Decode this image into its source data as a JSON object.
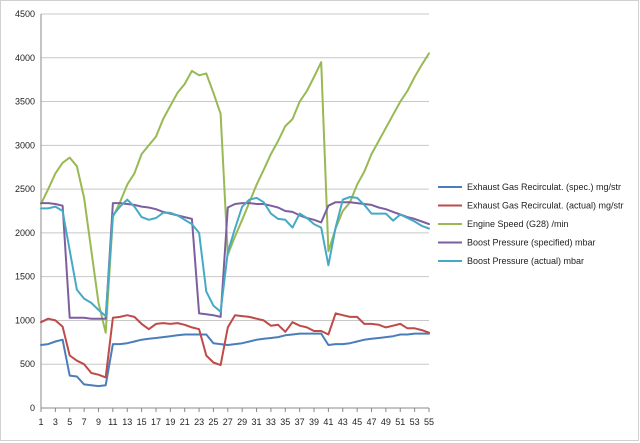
{
  "chart_data": {
    "type": "line",
    "title": "",
    "xlabel": "",
    "ylabel": "",
    "ylim": [
      0,
      4500
    ],
    "yticks": [
      0,
      500,
      1000,
      1500,
      2000,
      2500,
      3000,
      3500,
      4000,
      4500
    ],
    "x": [
      1,
      2,
      3,
      4,
      5,
      6,
      7,
      8,
      9,
      10,
      11,
      12,
      13,
      14,
      15,
      16,
      17,
      18,
      19,
      20,
      21,
      22,
      23,
      24,
      25,
      26,
      27,
      28,
      29,
      30,
      31,
      32,
      33,
      34,
      35,
      36,
      37,
      38,
      39,
      40,
      41,
      42,
      43,
      44,
      45,
      46,
      47,
      48,
      49,
      50,
      51,
      52,
      53,
      54,
      55
    ],
    "xtick_labels": [
      "1",
      "3",
      "5",
      "7",
      "9",
      "11",
      "13",
      "15",
      "17",
      "19",
      "21",
      "23",
      "25",
      "27",
      "29",
      "31",
      "33",
      "35",
      "37",
      "39",
      "41",
      "43",
      "45",
      "47",
      "49",
      "51",
      "53",
      "55"
    ],
    "grid": "horizontal",
    "legend": "right",
    "series": [
      {
        "name": "Exhaust Gas Recirculat. (spec.)  mg/str",
        "color": "#4A7EBB",
        "values": [
          720,
          730,
          760,
          780,
          370,
          360,
          270,
          260,
          250,
          260,
          730,
          730,
          740,
          760,
          780,
          790,
          800,
          810,
          820,
          830,
          840,
          840,
          840,
          840,
          740,
          730,
          720,
          730,
          740,
          760,
          780,
          790,
          800,
          810,
          830,
          840,
          850,
          850,
          850,
          850,
          720,
          730,
          730,
          740,
          760,
          780,
          790,
          800,
          810,
          820,
          840,
          840,
          850,
          850,
          850
        ]
      },
      {
        "name": "Exhaust Gas Recirculat. (actual)  mg/str",
        "color": "#BE4B48",
        "values": [
          980,
          1020,
          1000,
          930,
          600,
          540,
          500,
          400,
          380,
          350,
          1030,
          1040,
          1060,
          1040,
          960,
          900,
          960,
          970,
          960,
          970,
          950,
          920,
          900,
          600,
          520,
          490,
          920,
          1060,
          1050,
          1040,
          1020,
          1000,
          940,
          950,
          870,
          980,
          940,
          920,
          880,
          880,
          840,
          1080,
          1060,
          1040,
          1040,
          960,
          960,
          950,
          920,
          940,
          960,
          910,
          910,
          890,
          860
        ]
      },
      {
        "name": "Engine Speed (G28)  /min",
        "color": "#98B954",
        "values": [
          2330,
          2500,
          2680,
          2800,
          2860,
          2760,
          2400,
          1800,
          1200,
          860,
          2180,
          2350,
          2550,
          2680,
          2900,
          3000,
          3100,
          3300,
          3450,
          3600,
          3700,
          3850,
          3800,
          3820,
          3600,
          3360,
          1750,
          1960,
          2150,
          2350,
          2550,
          2720,
          2900,
          3050,
          3220,
          3300,
          3500,
          3620,
          3780,
          3950,
          1790,
          2050,
          2250,
          2350,
          2550,
          2700,
          2900,
          3050,
          3200,
          3350,
          3500,
          3620,
          3780,
          3920,
          4050
        ]
      },
      {
        "name": "Boost Pressure (specified)  mbar",
        "color": "#7D5FA0",
        "values": [
          2340,
          2340,
          2330,
          2310,
          1030,
          1030,
          1030,
          1020,
          1020,
          1020,
          2340,
          2340,
          2330,
          2320,
          2300,
          2290,
          2270,
          2240,
          2220,
          2200,
          2180,
          2160,
          1080,
          1070,
          1060,
          1040,
          2290,
          2330,
          2340,
          2340,
          2330,
          2330,
          2310,
          2290,
          2250,
          2240,
          2200,
          2170,
          2150,
          2120,
          2310,
          2350,
          2350,
          2350,
          2340,
          2330,
          2320,
          2290,
          2270,
          2240,
          2210,
          2180,
          2160,
          2130,
          2100
        ]
      },
      {
        "name": "Boost Pressure (actual)  mbar",
        "color": "#46AAC5",
        "values": [
          2280,
          2280,
          2300,
          2250,
          1800,
          1350,
          1250,
          1200,
          1120,
          1050,
          2200,
          2300,
          2380,
          2300,
          2180,
          2150,
          2170,
          2230,
          2230,
          2200,
          2150,
          2100,
          2000,
          1330,
          1170,
          1100,
          1780,
          2050,
          2300,
          2380,
          2400,
          2350,
          2220,
          2160,
          2150,
          2060,
          2220,
          2170,
          2100,
          2060,
          1630,
          2060,
          2380,
          2410,
          2400,
          2320,
          2220,
          2220,
          2220,
          2140,
          2210,
          2170,
          2130,
          2080,
          2050
        ]
      }
    ]
  }
}
